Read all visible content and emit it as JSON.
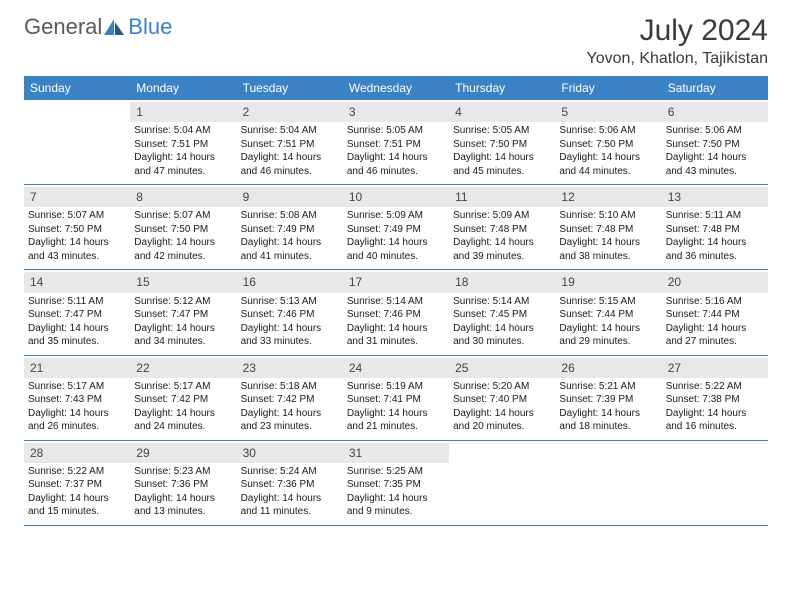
{
  "logo": {
    "part1": "General",
    "part2": "Blue"
  },
  "title": "July 2024",
  "location": "Yovon, Khatlon, Tajikistan",
  "colors": {
    "header_bg": "#3b82c4",
    "header_fg": "#ffffff",
    "daynum_bg": "#e8e8e8",
    "border": "#3b82c4",
    "logo_gray": "#5a5a5a",
    "logo_blue": "#3b82c4"
  },
  "day_names": [
    "Sunday",
    "Monday",
    "Tuesday",
    "Wednesday",
    "Thursday",
    "Friday",
    "Saturday"
  ],
  "weeks": [
    [
      {
        "empty": true
      },
      {
        "n": "1",
        "sr": "Sunrise: 5:04 AM",
        "ss": "Sunset: 7:51 PM",
        "dl": "Daylight: 14 hours and 47 minutes."
      },
      {
        "n": "2",
        "sr": "Sunrise: 5:04 AM",
        "ss": "Sunset: 7:51 PM",
        "dl": "Daylight: 14 hours and 46 minutes."
      },
      {
        "n": "3",
        "sr": "Sunrise: 5:05 AM",
        "ss": "Sunset: 7:51 PM",
        "dl": "Daylight: 14 hours and 46 minutes."
      },
      {
        "n": "4",
        "sr": "Sunrise: 5:05 AM",
        "ss": "Sunset: 7:50 PM",
        "dl": "Daylight: 14 hours and 45 minutes."
      },
      {
        "n": "5",
        "sr": "Sunrise: 5:06 AM",
        "ss": "Sunset: 7:50 PM",
        "dl": "Daylight: 14 hours and 44 minutes."
      },
      {
        "n": "6",
        "sr": "Sunrise: 5:06 AM",
        "ss": "Sunset: 7:50 PM",
        "dl": "Daylight: 14 hours and 43 minutes."
      }
    ],
    [
      {
        "n": "7",
        "sr": "Sunrise: 5:07 AM",
        "ss": "Sunset: 7:50 PM",
        "dl": "Daylight: 14 hours and 43 minutes."
      },
      {
        "n": "8",
        "sr": "Sunrise: 5:07 AM",
        "ss": "Sunset: 7:50 PM",
        "dl": "Daylight: 14 hours and 42 minutes."
      },
      {
        "n": "9",
        "sr": "Sunrise: 5:08 AM",
        "ss": "Sunset: 7:49 PM",
        "dl": "Daylight: 14 hours and 41 minutes."
      },
      {
        "n": "10",
        "sr": "Sunrise: 5:09 AM",
        "ss": "Sunset: 7:49 PM",
        "dl": "Daylight: 14 hours and 40 minutes."
      },
      {
        "n": "11",
        "sr": "Sunrise: 5:09 AM",
        "ss": "Sunset: 7:48 PM",
        "dl": "Daylight: 14 hours and 39 minutes."
      },
      {
        "n": "12",
        "sr": "Sunrise: 5:10 AM",
        "ss": "Sunset: 7:48 PM",
        "dl": "Daylight: 14 hours and 38 minutes."
      },
      {
        "n": "13",
        "sr": "Sunrise: 5:11 AM",
        "ss": "Sunset: 7:48 PM",
        "dl": "Daylight: 14 hours and 36 minutes."
      }
    ],
    [
      {
        "n": "14",
        "sr": "Sunrise: 5:11 AM",
        "ss": "Sunset: 7:47 PM",
        "dl": "Daylight: 14 hours and 35 minutes."
      },
      {
        "n": "15",
        "sr": "Sunrise: 5:12 AM",
        "ss": "Sunset: 7:47 PM",
        "dl": "Daylight: 14 hours and 34 minutes."
      },
      {
        "n": "16",
        "sr": "Sunrise: 5:13 AM",
        "ss": "Sunset: 7:46 PM",
        "dl": "Daylight: 14 hours and 33 minutes."
      },
      {
        "n": "17",
        "sr": "Sunrise: 5:14 AM",
        "ss": "Sunset: 7:46 PM",
        "dl": "Daylight: 14 hours and 31 minutes."
      },
      {
        "n": "18",
        "sr": "Sunrise: 5:14 AM",
        "ss": "Sunset: 7:45 PM",
        "dl": "Daylight: 14 hours and 30 minutes."
      },
      {
        "n": "19",
        "sr": "Sunrise: 5:15 AM",
        "ss": "Sunset: 7:44 PM",
        "dl": "Daylight: 14 hours and 29 minutes."
      },
      {
        "n": "20",
        "sr": "Sunrise: 5:16 AM",
        "ss": "Sunset: 7:44 PM",
        "dl": "Daylight: 14 hours and 27 minutes."
      }
    ],
    [
      {
        "n": "21",
        "sr": "Sunrise: 5:17 AM",
        "ss": "Sunset: 7:43 PM",
        "dl": "Daylight: 14 hours and 26 minutes."
      },
      {
        "n": "22",
        "sr": "Sunrise: 5:17 AM",
        "ss": "Sunset: 7:42 PM",
        "dl": "Daylight: 14 hours and 24 minutes."
      },
      {
        "n": "23",
        "sr": "Sunrise: 5:18 AM",
        "ss": "Sunset: 7:42 PM",
        "dl": "Daylight: 14 hours and 23 minutes."
      },
      {
        "n": "24",
        "sr": "Sunrise: 5:19 AM",
        "ss": "Sunset: 7:41 PM",
        "dl": "Daylight: 14 hours and 21 minutes."
      },
      {
        "n": "25",
        "sr": "Sunrise: 5:20 AM",
        "ss": "Sunset: 7:40 PM",
        "dl": "Daylight: 14 hours and 20 minutes."
      },
      {
        "n": "26",
        "sr": "Sunrise: 5:21 AM",
        "ss": "Sunset: 7:39 PM",
        "dl": "Daylight: 14 hours and 18 minutes."
      },
      {
        "n": "27",
        "sr": "Sunrise: 5:22 AM",
        "ss": "Sunset: 7:38 PM",
        "dl": "Daylight: 14 hours and 16 minutes."
      }
    ],
    [
      {
        "n": "28",
        "sr": "Sunrise: 5:22 AM",
        "ss": "Sunset: 7:37 PM",
        "dl": "Daylight: 14 hours and 15 minutes."
      },
      {
        "n": "29",
        "sr": "Sunrise: 5:23 AM",
        "ss": "Sunset: 7:36 PM",
        "dl": "Daylight: 14 hours and 13 minutes."
      },
      {
        "n": "30",
        "sr": "Sunrise: 5:24 AM",
        "ss": "Sunset: 7:36 PM",
        "dl": "Daylight: 14 hours and 11 minutes."
      },
      {
        "n": "31",
        "sr": "Sunrise: 5:25 AM",
        "ss": "Sunset: 7:35 PM",
        "dl": "Daylight: 14 hours and 9 minutes."
      },
      {
        "empty": true
      },
      {
        "empty": true
      },
      {
        "empty": true
      }
    ]
  ]
}
